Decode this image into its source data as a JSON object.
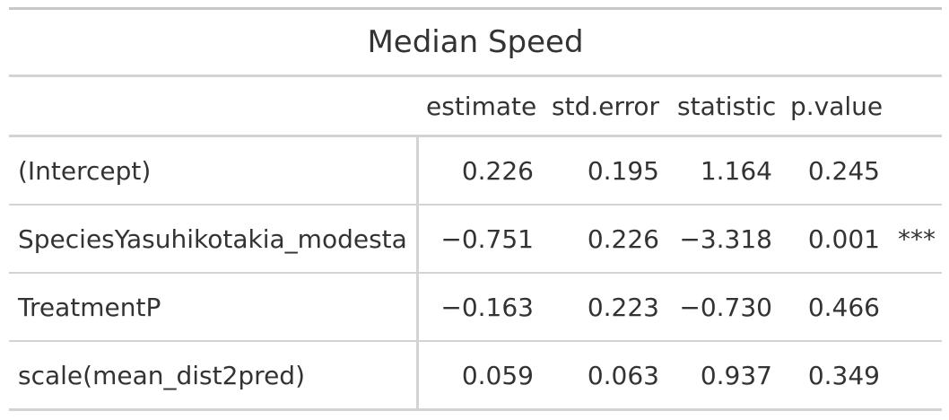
{
  "table": {
    "title": "Median Speed",
    "columns": [
      "",
      "estimate",
      "std.error",
      "statistic",
      "p.value",
      ""
    ],
    "rows": [
      {
        "term": "(Intercept)",
        "estimate": "0.226",
        "std_error": "0.195",
        "statistic": "1.164",
        "p_value": "0.245",
        "sig": ""
      },
      {
        "term": "SpeciesYasuhikotakia_modesta",
        "estimate": "−0.751",
        "std_error": "0.226",
        "statistic": "−3.318",
        "p_value": "0.001",
        "sig": "***"
      },
      {
        "term": "TreatmentP",
        "estimate": "−0.163",
        "std_error": "0.223",
        "statistic": "−0.730",
        "p_value": "0.466",
        "sig": ""
      },
      {
        "term": "scale(mean_dist2pred)",
        "estimate": "0.059",
        "std_error": "0.063",
        "statistic": "0.937",
        "p_value": "0.349",
        "sig": ""
      }
    ]
  }
}
